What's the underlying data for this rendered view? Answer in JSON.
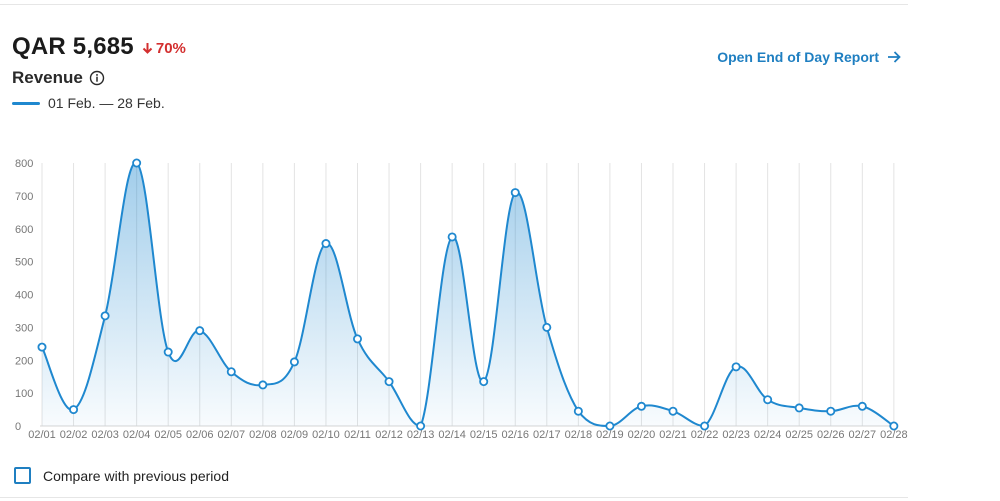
{
  "kpi": {
    "value": "QAR 5,685",
    "change": "70%"
  },
  "header": {
    "title": "Revenue",
    "report_link": "Open End of Day Report"
  },
  "legend": {
    "label": "01 Feb. — 28 Feb."
  },
  "compare": {
    "label": "Compare with previous period"
  },
  "colors": {
    "accent": "#1f88cf",
    "negative": "#d32f2f",
    "link": "#1f7fc1"
  },
  "icons": {
    "change": "arrow-down-icon",
    "info": "info-icon",
    "link": "arrow-right-icon"
  },
  "chart_data": {
    "type": "area",
    "title": "Revenue",
    "xlabel": "",
    "ylabel": "",
    "ylim": [
      0,
      800
    ],
    "yticks": [
      0,
      100,
      200,
      300,
      400,
      500,
      600,
      700,
      800
    ],
    "grid": "vertical",
    "categories": [
      "02/01",
      "02/02",
      "02/03",
      "02/04",
      "02/05",
      "02/06",
      "02/07",
      "02/08",
      "02/09",
      "02/10",
      "02/11",
      "02/12",
      "02/13",
      "02/14",
      "02/15",
      "02/16",
      "02/17",
      "02/18",
      "02/19",
      "02/20",
      "02/21",
      "02/22",
      "02/23",
      "02/24",
      "02/25",
      "02/26",
      "02/27",
      "02/28"
    ],
    "series": [
      {
        "name": "01 Feb. — 28 Feb.",
        "values": [
          240,
          50,
          335,
          800,
          225,
          290,
          165,
          125,
          195,
          555,
          265,
          135,
          0,
          575,
          135,
          710,
          300,
          45,
          0,
          60,
          45,
          0,
          180,
          80,
          55,
          45,
          60,
          0
        ]
      }
    ]
  }
}
